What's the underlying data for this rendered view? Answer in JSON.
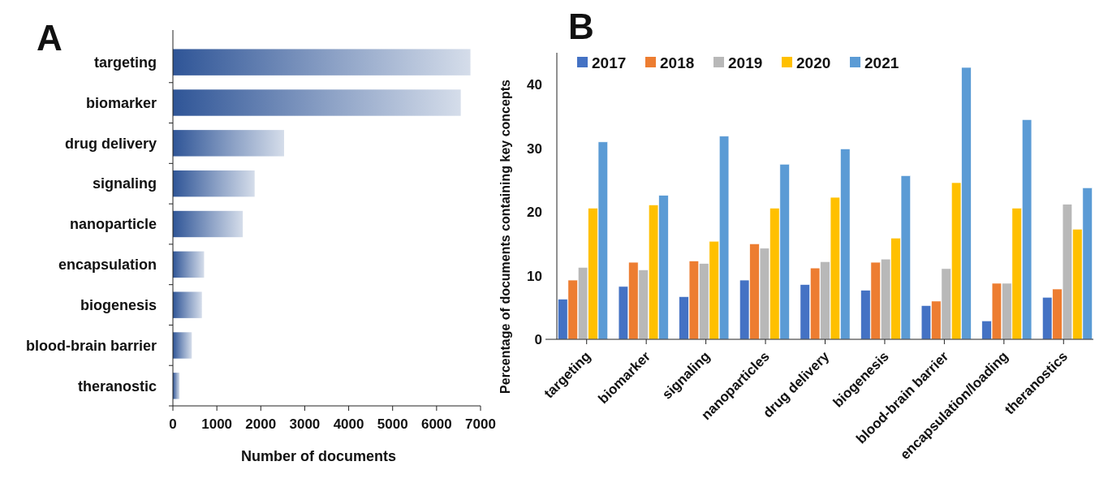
{
  "chart_data": [
    {
      "type": "bar",
      "title": "A",
      "orientation": "horizontal",
      "xlabel": "Number of documents",
      "categories": [
        "targeting",
        "biomarker",
        "drug delivery",
        "signaling",
        "nanoparticle",
        "encapsulation",
        "biogenesis",
        "blood-brain barrier",
        "theranostic"
      ],
      "values": [
        6770,
        6550,
        2530,
        1860,
        1590,
        710,
        660,
        430,
        150
      ],
      "color": "#2f5597",
      "xlim": [
        0,
        7000
      ],
      "xticks": [
        0,
        1000,
        2000,
        3000,
        4000,
        5000,
        6000,
        7000
      ],
      "grid": false
    },
    {
      "type": "bar",
      "title": "B",
      "ylabel": "Percentage of documents containing key concepts",
      "categories": [
        "targeting",
        "biomarker",
        "signaling",
        "nanoparticles",
        "drug delivery",
        "biogenesis",
        "blood-brain barrier",
        "encapsulation/loading",
        "theranostics"
      ],
      "series": [
        {
          "name": "2017",
          "color": "#4472c4",
          "values": [
            6.3,
            8.3,
            6.7,
            9.3,
            8.6,
            7.7,
            5.3,
            2.9,
            6.6
          ]
        },
        {
          "name": "2018",
          "color": "#ed7d31",
          "values": [
            9.3,
            12.1,
            12.3,
            15.0,
            11.2,
            12.1,
            6.0,
            8.8,
            7.9
          ]
        },
        {
          "name": "2019",
          "color": "#b8b8b8",
          "values": [
            11.3,
            10.9,
            11.9,
            14.3,
            12.2,
            12.6,
            11.1,
            8.8,
            21.2
          ]
        },
        {
          "name": "2020",
          "color": "#ffc000",
          "values": [
            20.6,
            21.1,
            15.4,
            20.6,
            22.3,
            15.9,
            24.6,
            20.6,
            17.3
          ]
        },
        {
          "name": "2021",
          "color": "#5b9bd5",
          "values": [
            31.0,
            22.6,
            31.9,
            27.5,
            29.9,
            25.7,
            42.7,
            34.5,
            23.8
          ]
        }
      ],
      "ylim": [
        0,
        45
      ],
      "yticks": [
        0,
        10,
        20,
        30,
        40
      ],
      "grid": false,
      "legend": "top"
    }
  ]
}
